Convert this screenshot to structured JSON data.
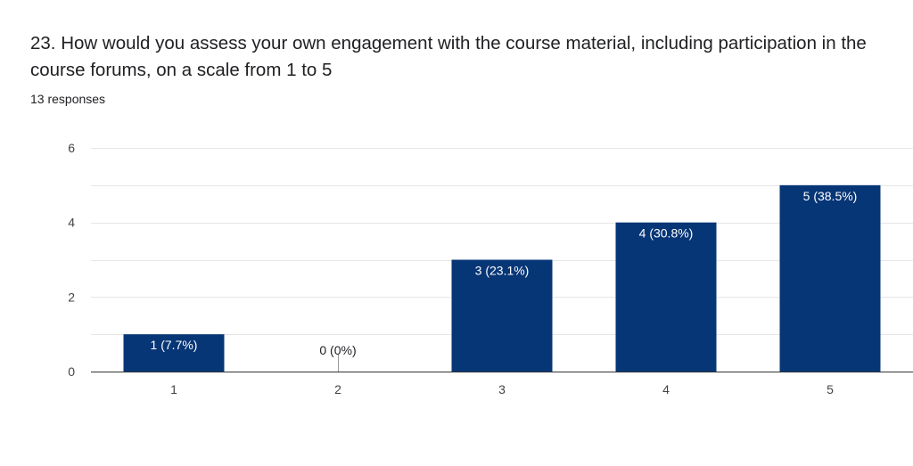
{
  "question": {
    "title": "23. How would you assess your own engagement with the course material, including participation in the course forums, on a scale from 1 to 5",
    "responses": "13 responses"
  },
  "colors": {
    "bar": "#073676",
    "grid": "#e6e6e6",
    "axis": "#333333",
    "label_inside": "#ffffff",
    "label_outside": "#202124"
  },
  "chart_data": {
    "type": "bar",
    "categories": [
      "1",
      "2",
      "3",
      "4",
      "5"
    ],
    "values": [
      1,
      0,
      3,
      4,
      5
    ],
    "data_labels": [
      "1 (7.7%)",
      "0 (0%)",
      "3 (23.1%)",
      "4 (30.8%)",
      "5 (38.5%)"
    ],
    "y_ticks": [
      0,
      2,
      4,
      6
    ],
    "ylim": [
      0,
      6
    ],
    "grid": true,
    "title": "",
    "xlabel": "",
    "ylabel": ""
  }
}
